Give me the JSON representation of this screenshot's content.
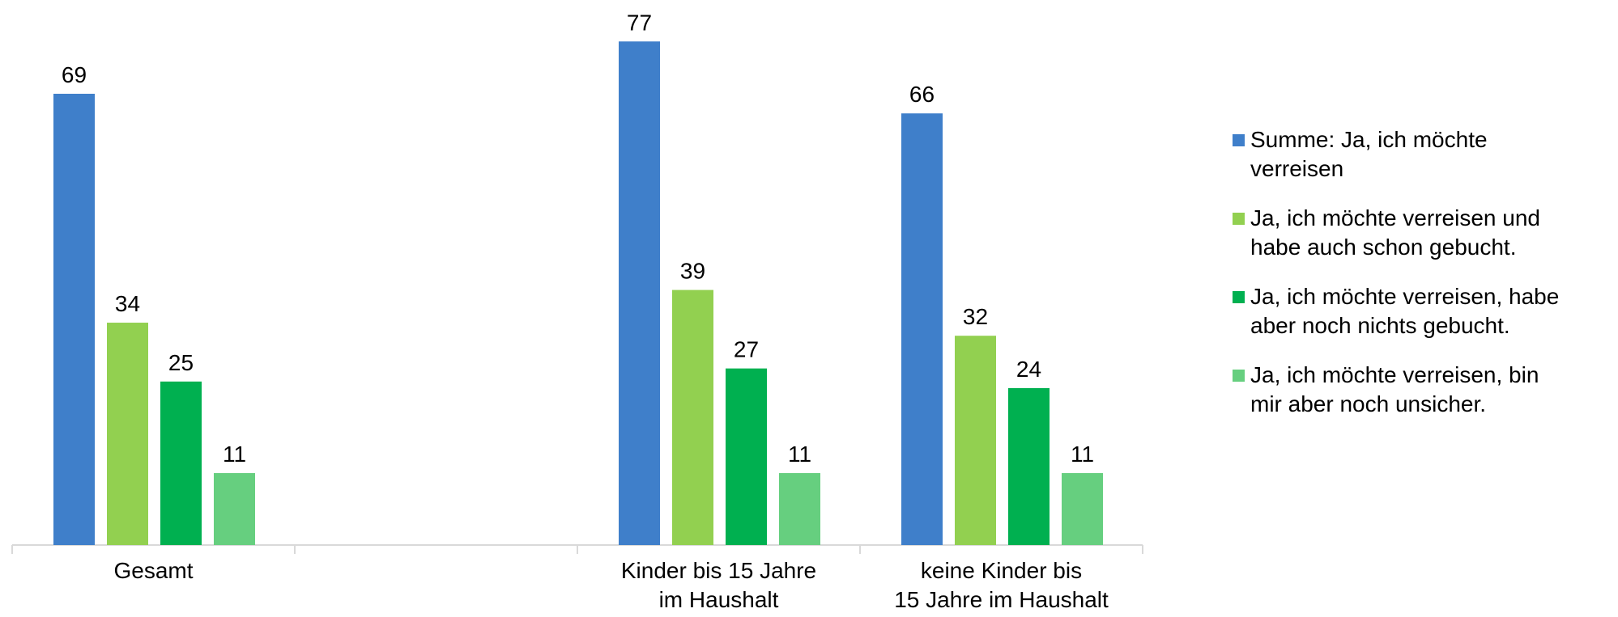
{
  "chart_data": {
    "type": "bar",
    "categories": [
      "Gesamt",
      null,
      "Kinder bis 15 Jahre\nim Haushalt",
      "keine Kinder bis\n15 Jahre im Haushalt"
    ],
    "series": [
      {
        "name": "Summe: Ja, ich möchte\nverreisen",
        "color": "#3f7fca",
        "values": [
          69,
          null,
          77,
          66
        ]
      },
      {
        "name": "Ja, ich möchte verreisen und\nhabe auch schon gebucht.",
        "color": "#92d050",
        "values": [
          34,
          null,
          39,
          32
        ]
      },
      {
        "name": "Ja, ich möchte verreisen, habe\naber noch nichts gebucht.",
        "color": "#00b050",
        "values": [
          25,
          null,
          27,
          24
        ]
      },
      {
        "name": "Ja, ich möchte verreisen, bin\nmir aber noch unsicher.",
        "color": "#66cf7f",
        "values": [
          11,
          null,
          11,
          11
        ]
      }
    ],
    "ylim": [
      0,
      80
    ],
    "legend": "right"
  }
}
